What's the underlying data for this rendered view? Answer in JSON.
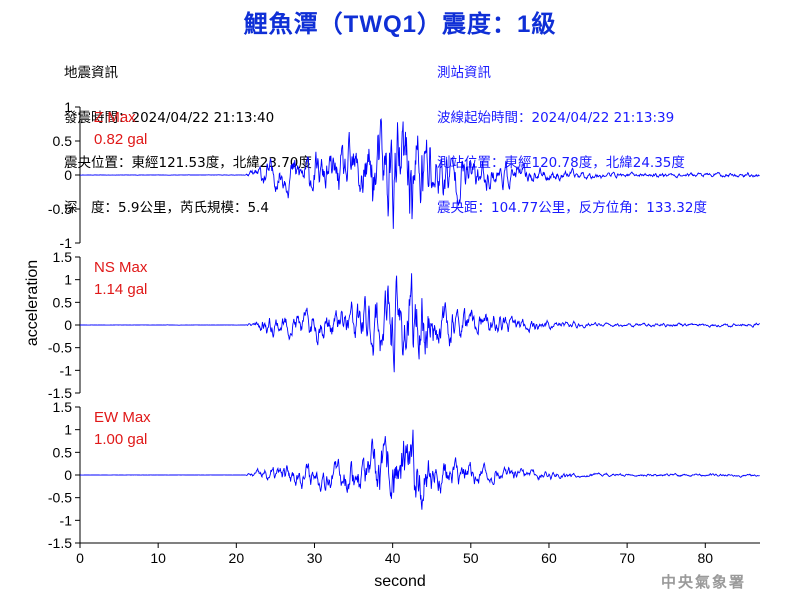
{
  "header": {
    "title": "鯉魚潭（TWQ1）震度：1級"
  },
  "quake_info": {
    "heading": "地震資訊",
    "time": "發震時間：2024/04/22 21:13:40",
    "epicenter": "震央位置：東經121.53度，北緯23.70度",
    "depth_mag": "深　度：5.9公里，芮氏規模：5.4"
  },
  "station_info": {
    "heading": "測站資訊",
    "start": "波線起始時間：2024/04/22 21:13:39",
    "location": "測站位置：東經120.78度，北緯24.35度",
    "distance": "震央距：104.77公里，反方位角：133.32度"
  },
  "watermark": "中央氣象署",
  "chart_data": {
    "type": "line",
    "xlabel": "second",
    "ylabel": "acceleration",
    "xlim": [
      0,
      87
    ],
    "xticks": [
      "0",
      "10",
      "20",
      "30",
      "40",
      "50",
      "60",
      "70",
      "80"
    ],
    "line_color": "#0000ff",
    "panels": [
      {
        "name": "Z",
        "label_line1": "Z Max",
        "label_line2": "0.82 gal",
        "max": 0.82,
        "ylim": [
          -1,
          1
        ],
        "yticks": [
          "1",
          "0.5",
          "0",
          "-0.5",
          "-1"
        ],
        "seed": 11
      },
      {
        "name": "NS",
        "label_line1": "NS Max",
        "label_line2": "1.14 gal",
        "max": 1.14,
        "ylim": [
          -1.5,
          1.5
        ],
        "yticks": [
          "1.5",
          "1",
          "0.5",
          "0",
          "-0.5",
          "-1",
          "-1.5"
        ],
        "seed": 23
      },
      {
        "name": "EW",
        "label_line1": "EW Max",
        "label_line2": "1.00 gal",
        "max": 1.0,
        "ylim": [
          -1.5,
          1.5
        ],
        "yticks": [
          "1.5",
          "1",
          "0.5",
          "0",
          "-0.5",
          "-1",
          "-1.5"
        ],
        "seed": 37
      }
    ]
  }
}
